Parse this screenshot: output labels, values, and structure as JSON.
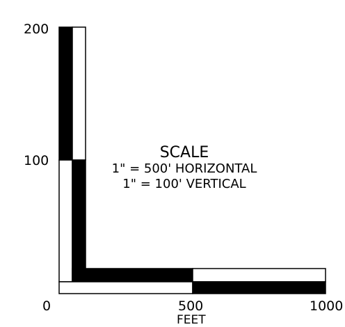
{
  "scale_bar": {
    "vertical": {
      "tick_labels": [
        "200",
        "100"
      ]
    },
    "horizontal": {
      "tick_labels": [
        "0",
        "500",
        "1000"
      ],
      "units": "FEET"
    },
    "legend": {
      "title": "SCALE",
      "horizontal_ratio": "1\" = 500' HORIZONTAL",
      "vertical_ratio": "1\" = 100' VERTICAL"
    },
    "colors": {
      "fill": "#000000",
      "background": "#ffffff"
    }
  }
}
